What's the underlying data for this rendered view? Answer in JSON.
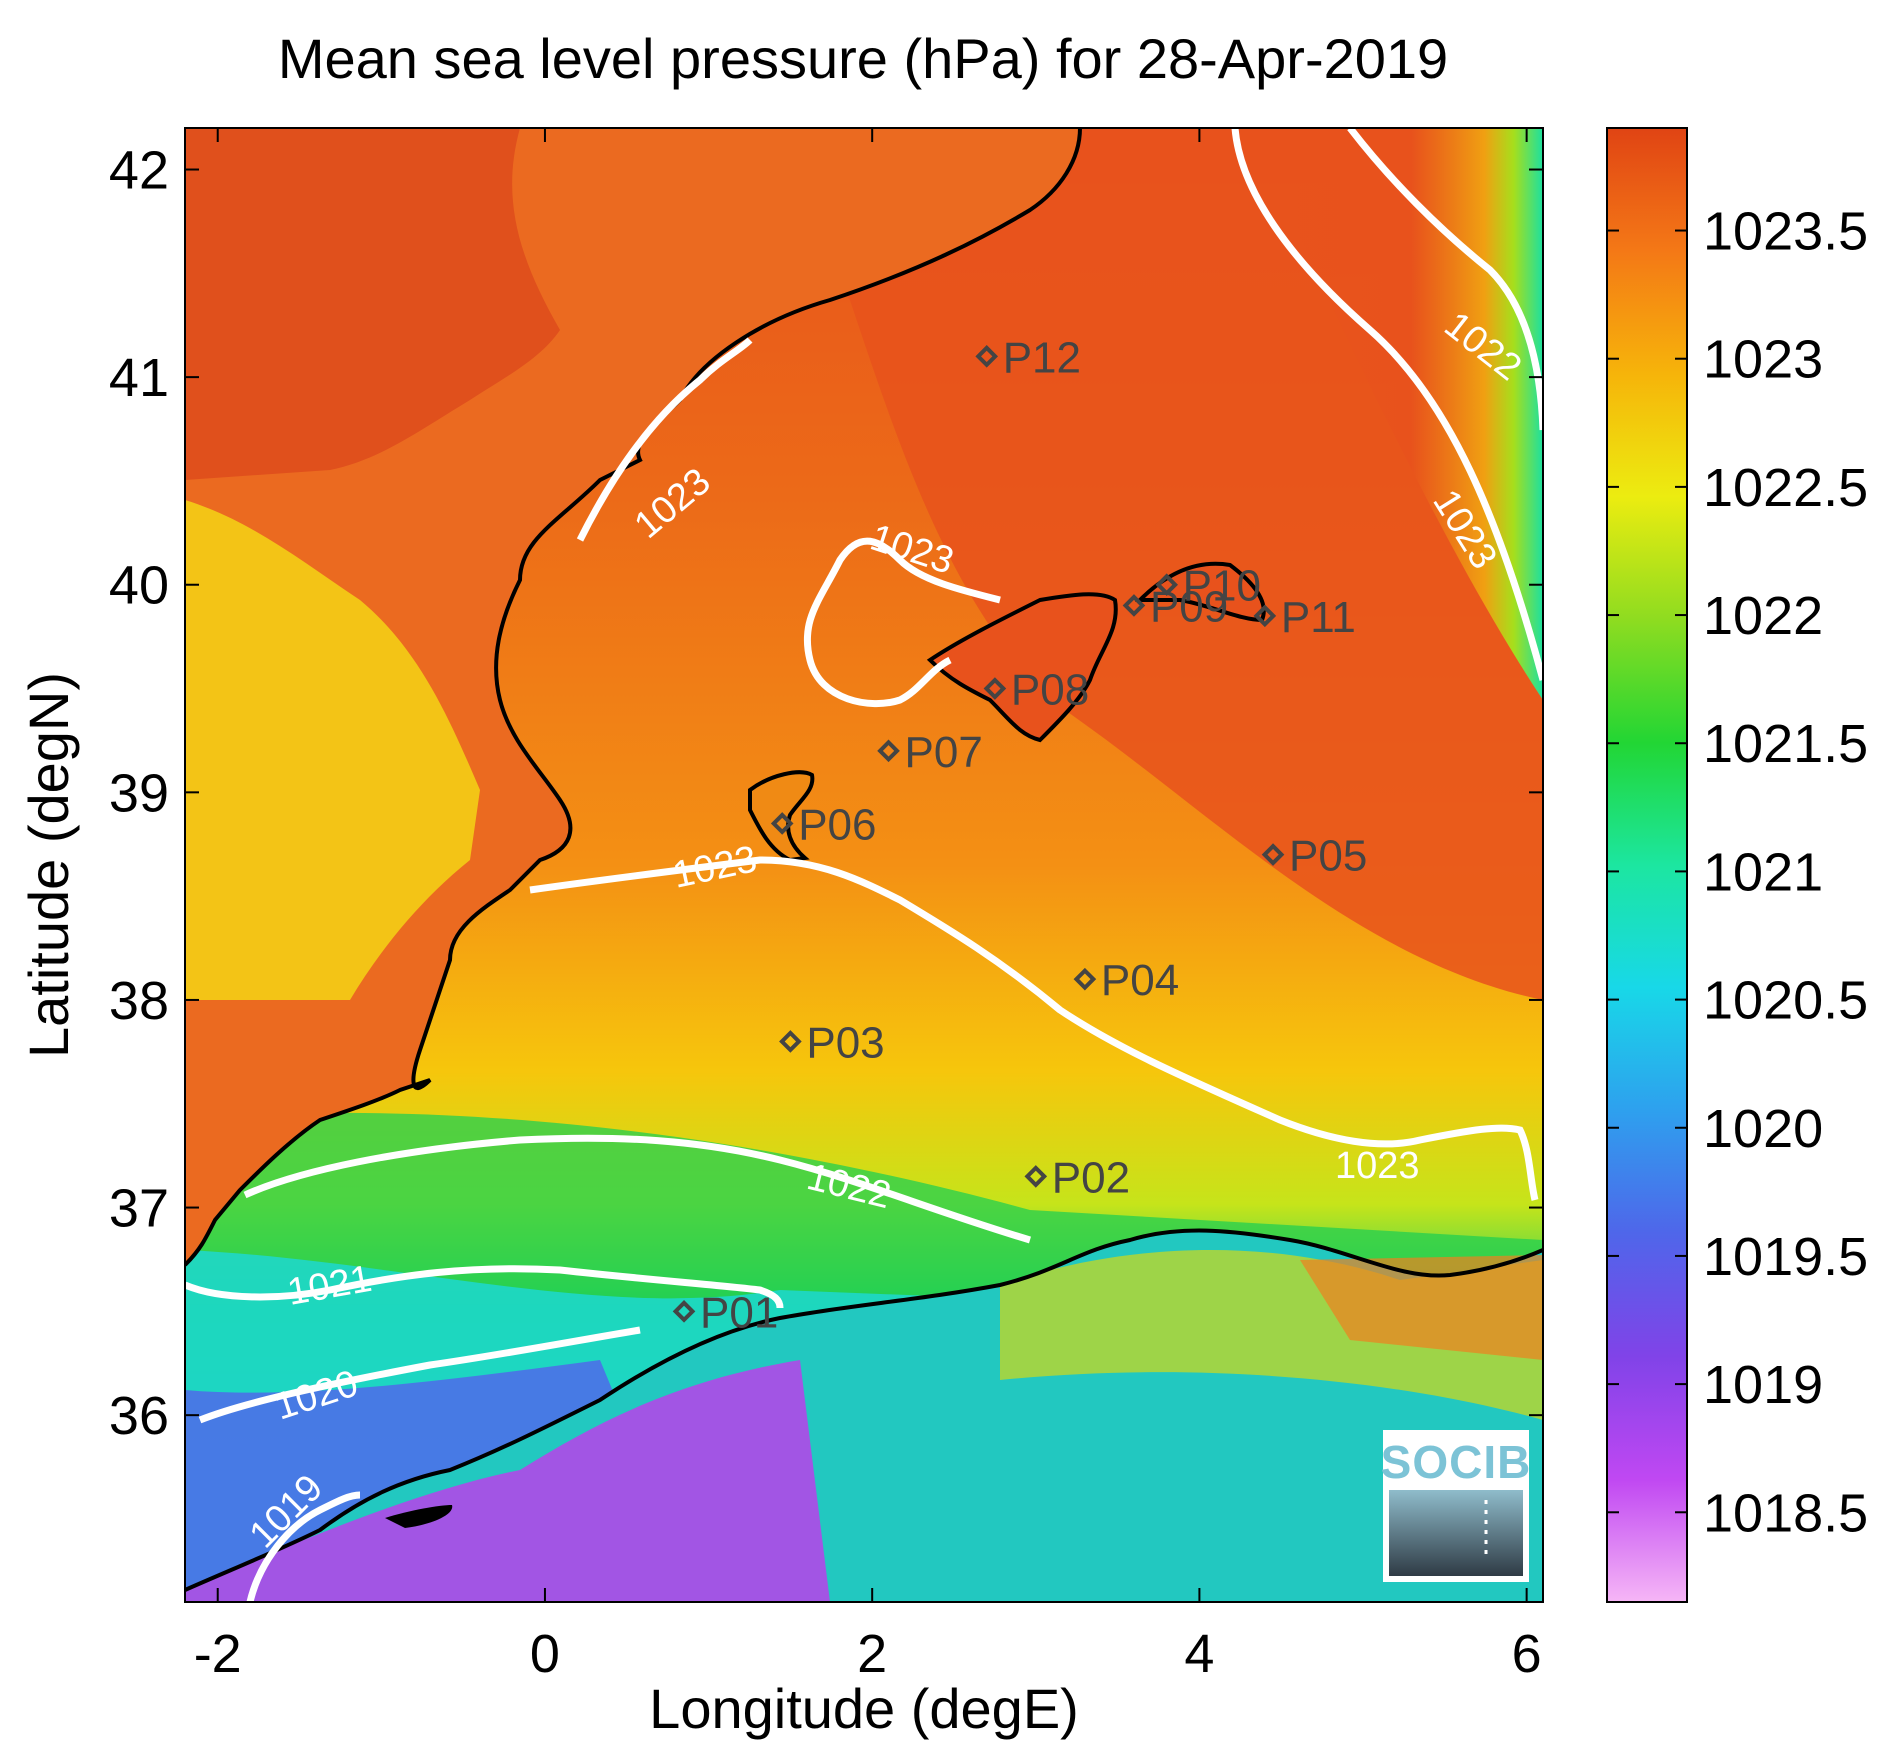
{
  "title": "Mean sea level pressure (hPa) for 28-Apr-2019",
  "xlabel": "Longitude (degE)",
  "ylabel": "Latitude (degN)",
  "x_ticks": [
    "-2",
    "0",
    "2",
    "4",
    "6"
  ],
  "y_ticks": [
    "36",
    "37",
    "38",
    "39",
    "40",
    "41",
    "42"
  ],
  "colorbar": {
    "ticks": [
      "1018.5",
      "1019",
      "1019.5",
      "1020",
      "1020.5",
      "1021",
      "1021.5",
      "1022",
      "1022.5",
      "1023",
      "1023.5"
    ],
    "range": [
      1018.15,
      1023.9
    ],
    "colors": [
      "#f6b6f6",
      "#c048f2",
      "#8043e8",
      "#4f66ea",
      "#2ea0ee",
      "#18d8e8",
      "#1ce6a0",
      "#22d634",
      "#8fdc20",
      "#ecec10",
      "#f6b40a",
      "#f47816",
      "#e04414"
    ]
  },
  "map": {
    "lon_range": [
      -2.2,
      6.1
    ],
    "lat_range": [
      35.1,
      42.2
    ],
    "land_color": "#f1c40f",
    "sea_colors": {
      "high": "#e8521c",
      "mid": "#f48a14",
      "low": "#f6c30e"
    }
  },
  "points": [
    {
      "label": "P01",
      "lon": 0.85,
      "lat": 36.5
    },
    {
      "label": "P02",
      "lon": 3.0,
      "lat": 37.15
    },
    {
      "label": "P03",
      "lon": 1.5,
      "lat": 37.8
    },
    {
      "label": "P04",
      "lon": 3.3,
      "lat": 38.1
    },
    {
      "label": "P05",
      "lon": 4.45,
      "lat": 38.7
    },
    {
      "label": "P06",
      "lon": 1.45,
      "lat": 38.85
    },
    {
      "label": "P07",
      "lon": 2.1,
      "lat": 39.2
    },
    {
      "label": "P08",
      "lon": 2.75,
      "lat": 39.5
    },
    {
      "label": "P09",
      "lon": 3.6,
      "lat": 39.9
    },
    {
      "label": "P10",
      "lon": 3.8,
      "lat": 40.0
    },
    {
      "label": "P11",
      "lon": 4.4,
      "lat": 39.85
    },
    {
      "label": "P12",
      "lon": 2.7,
      "lat": 41.1
    }
  ],
  "contour_labels": [
    "1023",
    "1023",
    "1023",
    "1023",
    "1023",
    "1022",
    "1022",
    "1021",
    "1020",
    "1019"
  ],
  "logo": {
    "text": "SOCIB"
  }
}
